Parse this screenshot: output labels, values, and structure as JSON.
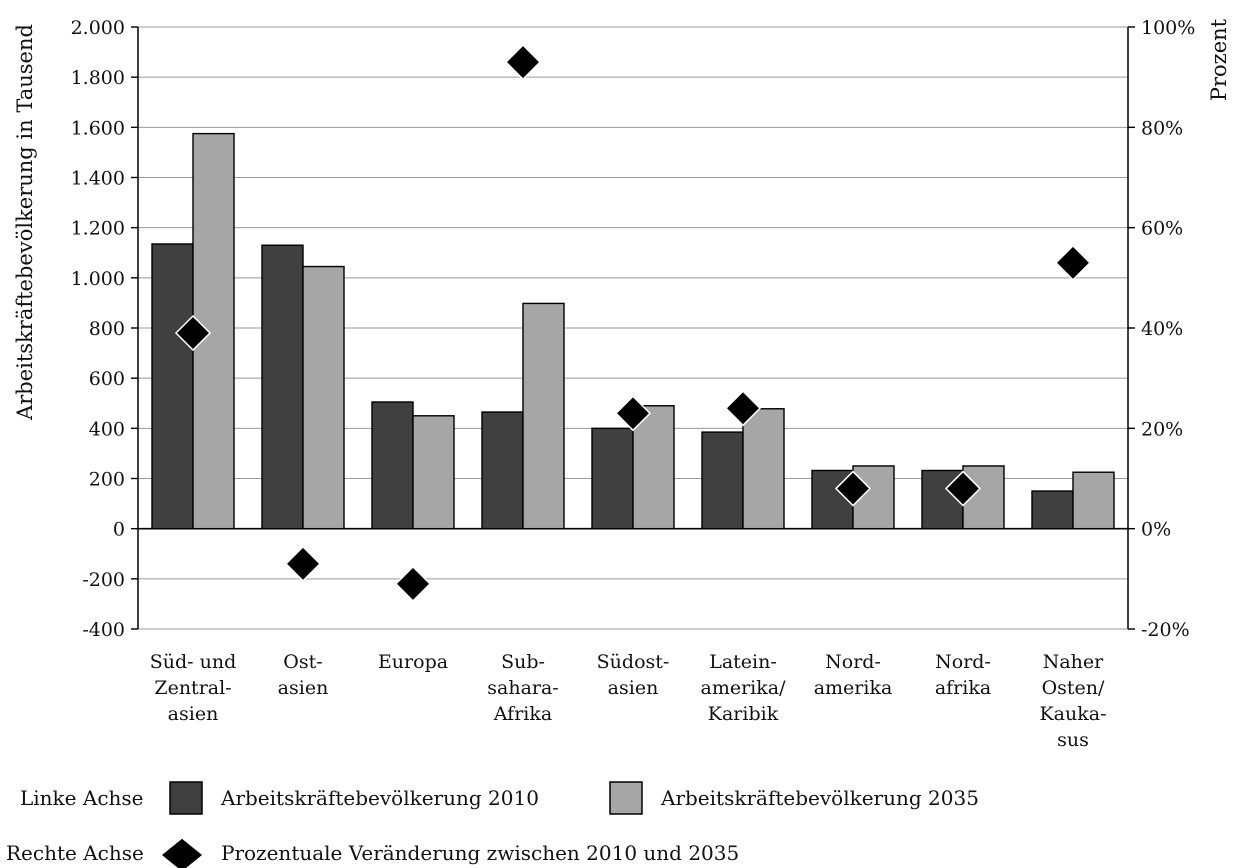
{
  "chart_data": {
    "type": "bar",
    "categories": [
      [
        "Süd- und",
        "Zentral-",
        "asien"
      ],
      [
        "Ost-",
        "asien"
      ],
      [
        "Europa"
      ],
      [
        "Sub-",
        "sahara-",
        "Afrika"
      ],
      [
        "Südost-",
        "asien"
      ],
      [
        "Latein-",
        "amerika/",
        "Karibik"
      ],
      [
        "Nord-",
        "amerika"
      ],
      [
        "Nord-",
        "afrika"
      ],
      [
        "Naher",
        "Osten/",
        "Kauka-",
        "sus"
      ]
    ],
    "series": [
      {
        "name": "Arbeitskräftebevölkerung 2010",
        "axis": "left",
        "kind": "bar",
        "color": "#404040",
        "values": [
          1135,
          1130,
          505,
          465,
          400,
          385,
          232,
          232,
          150
        ]
      },
      {
        "name": "Arbeitskräftebevölkerung 2035",
        "axis": "left",
        "kind": "bar",
        "color": "#a6a6a6",
        "values": [
          1575,
          1045,
          450,
          898,
          490,
          478,
          250,
          250,
          225
        ]
      },
      {
        "name": "Prozentuale Veränderung zwischen 2010 und 2035",
        "axis": "right",
        "kind": "marker",
        "marker": "diamond",
        "color": "#000000",
        "values": [
          39,
          -7,
          -11,
          93,
          23,
          24,
          8,
          8,
          53
        ]
      }
    ],
    "left_axis": {
      "label": "Arbeitskräftebevölkerung in Tausend",
      "range": [
        -400,
        2000
      ],
      "ticks": [
        -400,
        -200,
        0,
        200,
        400,
        600,
        800,
        1000,
        1200,
        1400,
        1600,
        1800,
        2000
      ],
      "tick_labels": [
        "-400",
        "-200",
        "0",
        "200",
        "400",
        "600",
        "800",
        "1.000",
        "1.200",
        "1.400",
        "1.600",
        "1.800",
        "2.000"
      ]
    },
    "right_axis": {
      "label": "Prozent",
      "range": [
        -20,
        100
      ],
      "ticks": [
        -20,
        0,
        20,
        40,
        60,
        80,
        100
      ],
      "tick_labels": [
        "-20%",
        "0%",
        "20%",
        "40%",
        "60%",
        "80%",
        "100%"
      ]
    },
    "grid": true,
    "legend": {
      "placement": "bottom",
      "left_axis_label": "Linke Achse",
      "right_axis_label": "Rechte Achse"
    }
  }
}
